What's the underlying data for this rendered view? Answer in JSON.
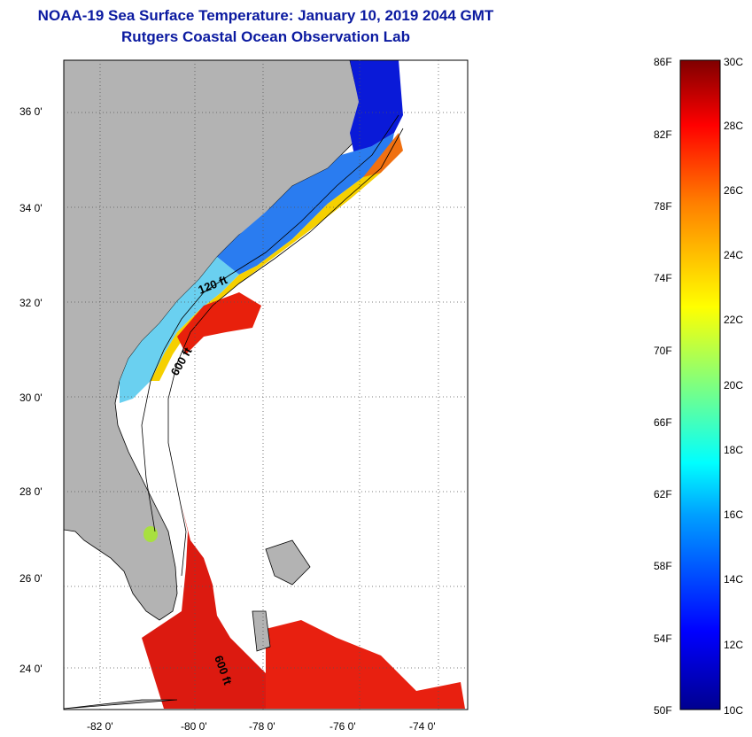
{
  "title": "NOAA-19 Sea Surface Temperature:  January 10, 2019 2044 GMT",
  "subtitle": "Rutgers Coastal Ocean Observation Lab",
  "lat_labels": [
    "36 0'",
    "34 0'",
    "32 0'",
    "30 0'",
    "28 0'",
    "26 0'",
    "24 0'"
  ],
  "lon_labels": [
    "-82 0'",
    "-80 0'",
    "-78 0'",
    "-76 0'",
    "-74 0'"
  ],
  "contours": [
    "120 ft",
    "600 ft",
    "600 ft"
  ],
  "colorbar": {
    "f_labels": [
      "86F",
      "82F",
      "78F",
      "74F",
      "70F",
      "66F",
      "62F",
      "58F",
      "54F",
      "50F"
    ],
    "c_labels": [
      "30C",
      "28C",
      "26C",
      "24C",
      "22C",
      "20C",
      "18C",
      "16C",
      "14C",
      "12C",
      "10C"
    ]
  },
  "colors": {
    "land": "#b3b3b3",
    "title": "#0b1aa0"
  }
}
